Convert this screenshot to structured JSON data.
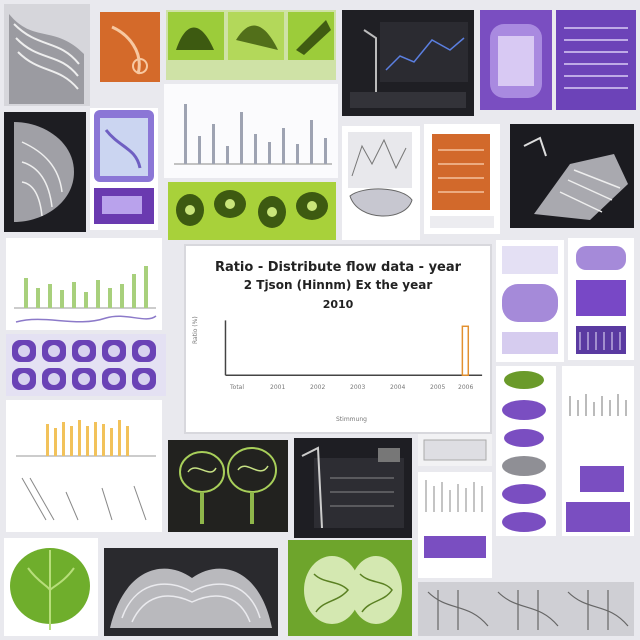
{
  "collage": {
    "tiles": [
      "grey-pleated-fabric",
      "orange-panel",
      "green-photos",
      "dark-chart",
      "purple-panels",
      "purple-lines",
      "grey-anatomy",
      "purple-bag",
      "bar-chart-small",
      "sketch-panel",
      "orange-box",
      "dark-device",
      "green-leaves",
      "chart-left",
      "center-chart",
      "chart-purple-dots",
      "purple-right",
      "purple-right-lower",
      "bar-chart-yellow",
      "green-tree-drawing",
      "dark-machine",
      "purple-icons",
      "green-leaf",
      "silver-waves",
      "green-brain",
      "grey-fabric-bottom"
    ],
    "colors": {
      "purple": "#7a4ec1",
      "green": "#8dbf2c",
      "orange": "#d4692b",
      "dark": "#222226",
      "silver": "#b9b9bd"
    }
  },
  "center_chart": {
    "title_line1": "Ratio - Distribute flow data - year",
    "title_line2": "2 Tjson (Hinnm) Ex the year",
    "title_line3": "2010",
    "ylabel": "Ratio (%)",
    "xlabel": "Stimmung",
    "x_ticks": [
      "Total",
      "2001",
      "2002",
      "2003",
      "2004",
      "2005",
      "2006"
    ]
  }
}
